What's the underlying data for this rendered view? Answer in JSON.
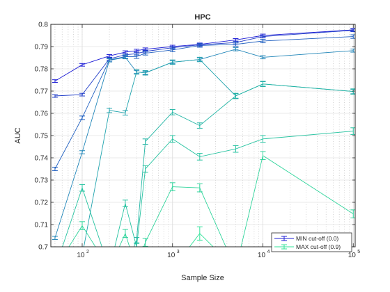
{
  "chart_data": {
    "type": "line",
    "title": "HPC",
    "xlabel": "Sample Size",
    "ylabel": "AUC",
    "xscale": "log",
    "xlim": [
      45,
      105000
    ],
    "ylim": [
      0.7,
      0.8
    ],
    "grid": true,
    "minor_grid": true,
    "legend_placement": "bottom-right",
    "y_ticks": [
      "0.7",
      "0.71",
      "0.72",
      "0.73",
      "0.74",
      "0.75",
      "0.76",
      "0.77",
      "0.78",
      "0.79",
      "0.8"
    ],
    "x_ticks": [
      {
        "value": 100,
        "base": "10",
        "exp": "2"
      },
      {
        "value": 1000,
        "base": "10",
        "exp": "3"
      },
      {
        "value": 10000,
        "base": "10",
        "exp": "4"
      },
      {
        "value": 100000,
        "base": "10",
        "exp": "5"
      }
    ],
    "x": [
      50,
      100,
      200,
      300,
      400,
      500,
      1000,
      2000,
      5000,
      10000,
      100000
    ],
    "series": [
      {
        "name": "MIN cut-off (0.0)",
        "color": "#1f1fd6",
        "values": [
          0.7745,
          0.7818,
          0.7858,
          0.7875,
          0.7882,
          0.7888,
          0.79,
          0.791,
          0.793,
          0.795,
          0.7975
        ],
        "err": 0.0006
      },
      {
        "color": "#1f3cc8",
        "values": [
          0.7678,
          0.7684,
          0.7845,
          0.7863,
          0.7868,
          0.7878,
          0.7895,
          0.7908,
          0.7918,
          0.7945,
          0.7973
        ],
        "err": 0.0006
      },
      {
        "color": "#1f5fc0",
        "values": null,
        "values_list": [
          0.735,
          0.758,
          0.784,
          0.7855,
          0.7855,
          0.787,
          0.7885,
          0.7905,
          0.791,
          0.7925,
          0.7945
        ],
        "err": 0.0008
      },
      {
        "color": "#1f85b8",
        "values_list": [
          0.704,
          0.7425,
          0.7838,
          0.7852,
          0.7786,
          0.7782,
          0.783,
          0.7842,
          0.7888,
          0.7852,
          0.7882
        ],
        "err": 0.0007
      },
      {
        "color": "#1fa3ad",
        "values_list": [
          0.698,
          0.696,
          0.7613,
          0.7602,
          0.7786,
          0.7782,
          0.783,
          0.7842,
          0.7678,
          0.7732,
          0.7698
        ],
        "err": 0.001
      },
      {
        "color": "#22b5a4",
        "values_list": [
          0.69,
          0.696,
          0.69,
          0.69,
          0.703,
          0.7473,
          0.7605,
          0.7545,
          0.7678,
          0.7732,
          0.7698
        ],
        "err": 0.0012
      },
      {
        "color": "#26c3a0",
        "values_list": [
          0.69,
          0.7265,
          0.69,
          0.7195,
          0.7,
          0.735,
          0.7485,
          0.7405,
          0.744,
          0.7485,
          0.752
        ],
        "err": 0.0015
      },
      {
        "color": "#2fd49b",
        "values_list": [
          0.69,
          0.7095,
          0.69,
          0.706,
          0.69,
          0.702,
          0.727,
          0.7265,
          0.69,
          0.741,
          0.7148
        ],
        "err": 0.0018
      },
      {
        "name": "MAX cut-off (0.9)",
        "color": "#33e39a",
        "values_list": [
          0.69,
          0.69,
          0.69,
          0.69,
          0.69,
          0.69,
          0.69,
          0.706,
          0.69,
          0.69,
          0.69
        ],
        "err": 0.003
      }
    ]
  }
}
